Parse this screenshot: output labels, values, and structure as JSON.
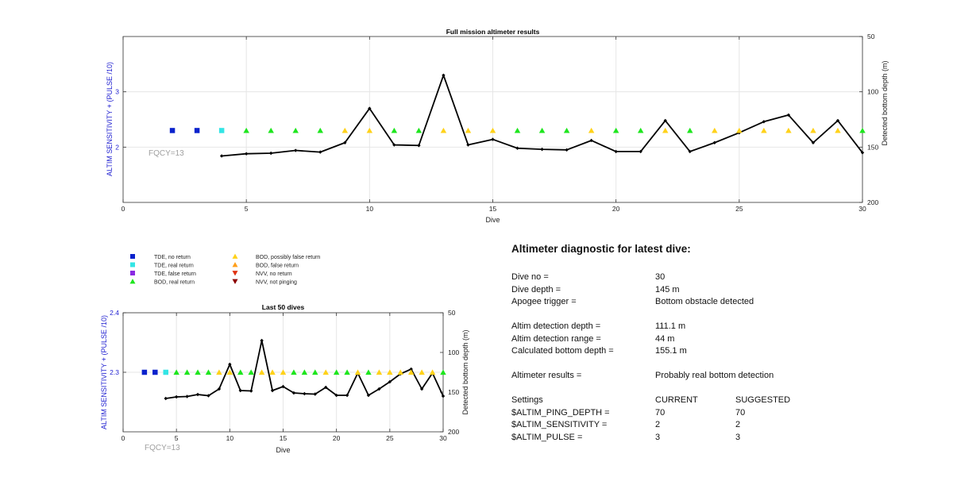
{
  "colors": {
    "ylabel_left": "#1f1fd0",
    "tde_no_return": "#0a22cc",
    "tde_real_return": "#33e5e5",
    "tde_false_return": "#8a2be2",
    "bod_real_return": "#1ee61e",
    "bod_possibly_false_return": "#ffd21a",
    "bod_false_return": "#ff9f1a",
    "nvv_no_return": "#e03010",
    "nvv_not_pinging": "#8b0000",
    "depth_line": "#000000",
    "fqcy_text": "#a0a0a0"
  },
  "legend": [
    {
      "label": "TDE, no return",
      "marker": "square",
      "color": "#0a22cc"
    },
    {
      "label": "TDE, real return",
      "marker": "square",
      "color": "#33e5e5"
    },
    {
      "label": "TDE, false return",
      "marker": "square",
      "color": "#8a2be2"
    },
    {
      "label": "BOD, real return",
      "marker": "triangle-up",
      "color": "#1ee61e"
    },
    {
      "label": "BOD, possibly false return",
      "marker": "triangle-up",
      "color": "#ffd21a"
    },
    {
      "label": "BOD, false return",
      "marker": "triangle-up",
      "color": "#ff9f1a"
    },
    {
      "label": "NVV, no return",
      "marker": "triangle-down",
      "color": "#e03010"
    },
    {
      "label": "NVV, not pinging",
      "marker": "triangle-down",
      "color": "#8b0000"
    }
  ],
  "chart_data": [
    {
      "type": "scatter",
      "title": "Full mission altimeter results",
      "xlabel": "Dive",
      "ylabel": "ALTIM SENSITIVITY + (PULSE /10)",
      "ylabel_right": "Detected bottom depth (m)",
      "xlim": [
        0,
        30
      ],
      "ylim": [
        1,
        4
      ],
      "ylim_right": [
        50,
        200
      ],
      "right_axis_reversed": true,
      "xticks": [
        0,
        5,
        10,
        15,
        20,
        25,
        30
      ],
      "yticks": [
        2,
        3
      ],
      "yticks_right": [
        50,
        100,
        150,
        200
      ],
      "grid": true,
      "annotation": "FQCY=13",
      "series": [
        {
          "name": "TDE, no return",
          "x": [
            2,
            3
          ],
          "y": [
            2.3,
            2.3
          ]
        },
        {
          "name": "TDE, real return",
          "x": [
            4
          ],
          "y": [
            2.3
          ]
        },
        {
          "name": "BOD, real return",
          "x": [
            5,
            6,
            7,
            8,
            11,
            12,
            16,
            17,
            18,
            20,
            21,
            23,
            30
          ],
          "y": [
            2.3,
            2.3,
            2.3,
            2.3,
            2.3,
            2.3,
            2.3,
            2.3,
            2.3,
            2.3,
            2.3,
            2.3,
            2.3
          ]
        },
        {
          "name": "BOD, possibly false return",
          "x": [
            9,
            10,
            13,
            14,
            15,
            19,
            22,
            24,
            25,
            26,
            27,
            28,
            29
          ],
          "y": [
            2.3,
            2.3,
            2.3,
            2.3,
            2.3,
            2.3,
            2.3,
            2.3,
            2.3,
            2.3,
            2.3,
            2.3,
            2.3
          ]
        },
        {
          "name": "Detected bottom depth",
          "axis": "right",
          "x": [
            4,
            5,
            6,
            7,
            8,
            9,
            10,
            11,
            12,
            13,
            14,
            15,
            16,
            17,
            18,
            19,
            20,
            21,
            22,
            23,
            24,
            25,
            26,
            27,
            28,
            29,
            30
          ],
          "y": [
            158,
            156,
            155.5,
            153,
            154.5,
            146,
            115,
            148,
            148.5,
            85,
            148,
            143,
            151,
            152,
            152.5,
            144,
            154,
            154,
            126,
            154,
            146,
            137,
            127,
            121,
            146,
            126,
            155
          ]
        }
      ]
    },
    {
      "type": "scatter",
      "title": "Last 50 dives",
      "xlabel": "Dive",
      "ylabel": "ALTIM SENSITIVITY + (PULSE /10)",
      "ylabel_right": "Detected bottom depth (m)",
      "xlim": [
        0,
        30
      ],
      "ylim": [
        2.2,
        2.4
      ],
      "ylim_right": [
        50,
        200
      ],
      "right_axis_reversed": true,
      "xticks": [
        0,
        5,
        10,
        15,
        20,
        25,
        30
      ],
      "yticks": [
        2.3,
        2.4
      ],
      "yticks_right": [
        50,
        100,
        150,
        200
      ],
      "grid": true,
      "annotation": "FQCY=13",
      "series": [
        {
          "name": "TDE, no return",
          "x": [
            2,
            3
          ],
          "y": [
            2.3,
            2.3
          ]
        },
        {
          "name": "TDE, real return",
          "x": [
            4
          ],
          "y": [
            2.3
          ]
        },
        {
          "name": "BOD, real return",
          "x": [
            5,
            6,
            7,
            8,
            11,
            12,
            16,
            17,
            18,
            20,
            21,
            23,
            30
          ],
          "y": [
            2.3,
            2.3,
            2.3,
            2.3,
            2.3,
            2.3,
            2.3,
            2.3,
            2.3,
            2.3,
            2.3,
            2.3,
            2.3
          ]
        },
        {
          "name": "BOD, possibly false return",
          "x": [
            9,
            10,
            13,
            14,
            15,
            19,
            22,
            24,
            25,
            26,
            27,
            28,
            29
          ],
          "y": [
            2.3,
            2.3,
            2.3,
            2.3,
            2.3,
            2.3,
            2.3,
            2.3,
            2.3,
            2.3,
            2.3,
            2.3,
            2.3
          ]
        },
        {
          "name": "Detected bottom depth",
          "axis": "right",
          "x": [
            4,
            5,
            6,
            7,
            8,
            9,
            10,
            11,
            12,
            13,
            14,
            15,
            16,
            17,
            18,
            19,
            20,
            21,
            22,
            23,
            24,
            25,
            26,
            27,
            28,
            29,
            30
          ],
          "y": [
            158,
            156,
            155.5,
            153,
            154.5,
            146,
            115,
            148,
            148.5,
            85,
            148,
            143,
            151,
            152,
            152.5,
            144,
            154,
            154,
            126,
            154,
            146,
            137,
            127,
            121,
            146,
            126,
            155
          ]
        }
      ]
    }
  ],
  "diagnostic": {
    "title": "Altimeter diagnostic for latest dive:",
    "dive_no_label": "Dive no =",
    "dive_no": "30",
    "dive_depth_label": "Dive depth =",
    "dive_depth": "145 m",
    "apogee_label": "Apogee trigger =",
    "apogee": "Bottom obstacle detected",
    "altim_det_depth_label": "Altim detection depth =",
    "altim_det_depth": "111.1 m",
    "altim_det_range_label": "Altim detection range =",
    "altim_det_range": "44 m",
    "calc_bottom_label": "Calculated bottom depth =",
    "calc_bottom": "155.1 m",
    "results_label": "Altimeter results =",
    "results": "Probably real bottom detection",
    "settings_label": "Settings",
    "current_label": "CURRENT",
    "suggested_label": "SUGGESTED",
    "settings": [
      {
        "name": "$ALTIM_PING_DEPTH =",
        "current": "70",
        "suggested": "70"
      },
      {
        "name": "$ALTIM_SENSITIVITY =",
        "current": "2",
        "suggested": "2"
      },
      {
        "name": "$ALTIM_PULSE =",
        "current": "3",
        "suggested": "3"
      }
    ]
  }
}
